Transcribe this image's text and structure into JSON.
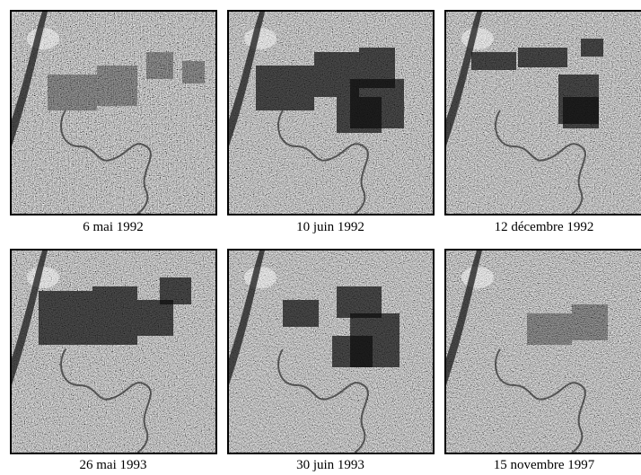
{
  "figure": {
    "panels": [
      {
        "caption": "6 mai 1992",
        "field_intensity": "faint"
      },
      {
        "caption": "10 juin 1992",
        "field_intensity": "strong"
      },
      {
        "caption": "12 décembre 1992",
        "field_intensity": "strong"
      },
      {
        "caption": "26 mai 1993",
        "field_intensity": "strong"
      },
      {
        "caption": "30 juin 1993",
        "field_intensity": "strong"
      },
      {
        "caption": "15 novembre 1997",
        "field_intensity": "faint"
      }
    ],
    "colors": {
      "border": "#000000",
      "speckle_base": "#7a7a7a"
    }
  }
}
